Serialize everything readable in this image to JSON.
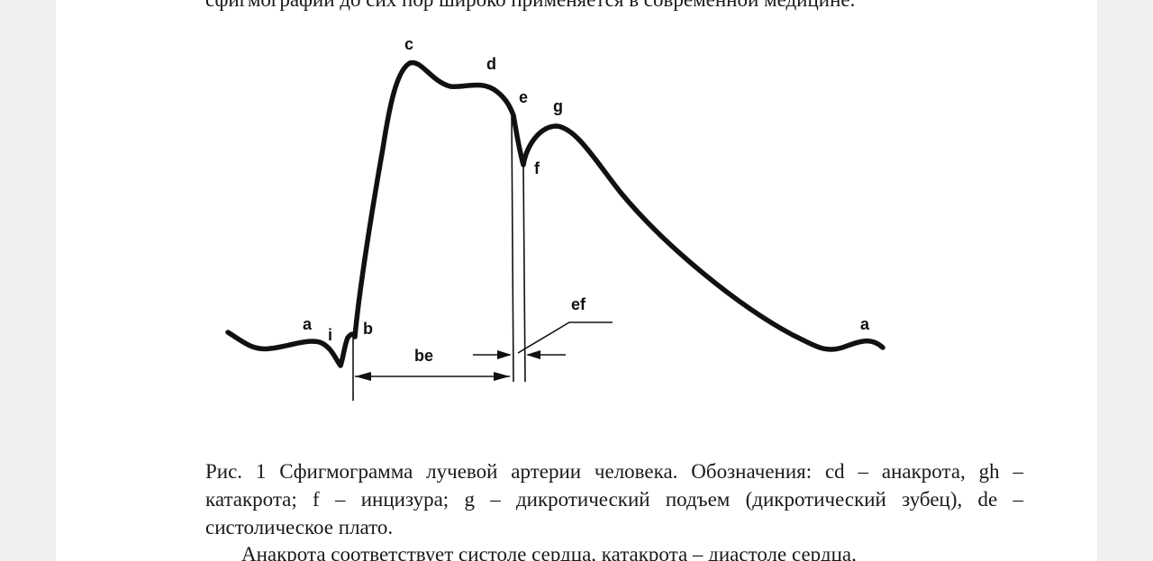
{
  "document": {
    "top_text": "сфигмографии до сих пор широко применяется в современной медицине.",
    "caption": "Рис. 1 Сфигмограмма лучевой артерии человека. Обозначения: cd – анакрота, gh – катакрота; f – инцизура; g – дикротический подъем (дикротический зубец), de – систолическое плато.",
    "next_paragraph": "Анакрота соответствует систоле сердца, катакрота – диастоле сердца,"
  },
  "figure": {
    "labels": {
      "a_left": "a",
      "i": "i",
      "b": "b",
      "c": "c",
      "d": "d",
      "e": "e",
      "f": "f",
      "g": "g",
      "a_right": "a",
      "be": "be",
      "ef": "ef"
    }
  }
}
